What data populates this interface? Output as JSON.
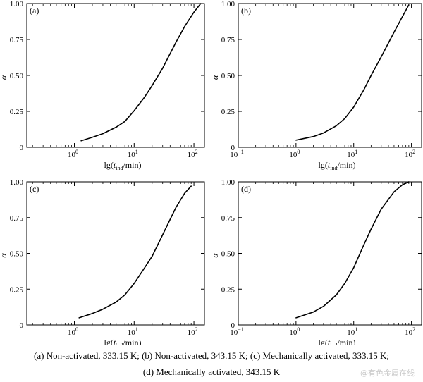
{
  "chart_data": [
    {
      "type": "line",
      "panel_label": "(a)",
      "xscale": "log",
      "xlim": [
        0.16,
        150
      ],
      "ylim": [
        0,
        1
      ],
      "xticks": [
        {
          "v": 1,
          "base": "10",
          "exp": "0"
        },
        {
          "v": 10,
          "base": "10",
          "exp": "1"
        },
        {
          "v": 100,
          "base": "10",
          "exp": "2"
        }
      ],
      "yticks": [
        {
          "v": 0,
          "label": "0"
        },
        {
          "v": 0.25,
          "label": "0.25"
        },
        {
          "v": 0.5,
          "label": "0.50"
        },
        {
          "v": 0.75,
          "label": "0.75"
        },
        {
          "v": 1,
          "label": "1.00"
        }
      ],
      "xlabel": {
        "pre": "lg(",
        "var": "t",
        "sub": "ind",
        "post": "/min)"
      },
      "ylabel": "α",
      "x": [
        1.3,
        2,
        3,
        5,
        7,
        10,
        15,
        20,
        30,
        50,
        70,
        100,
        130
      ],
      "y": [
        0.045,
        0.07,
        0.095,
        0.14,
        0.18,
        0.255,
        0.35,
        0.43,
        0.55,
        0.73,
        0.84,
        0.94,
        1.0
      ]
    },
    {
      "type": "line",
      "panel_label": "(b)",
      "xscale": "log",
      "xlim": [
        0.1,
        150
      ],
      "ylim": [
        0,
        1
      ],
      "xticks": [
        {
          "v": 0.1,
          "base": "10",
          "exp": "−1"
        },
        {
          "v": 1,
          "base": "10",
          "exp": "0"
        },
        {
          "v": 10,
          "base": "10",
          "exp": "1"
        },
        {
          "v": 100,
          "base": "10",
          "exp": "2"
        }
      ],
      "yticks": [
        {
          "v": 0,
          "label": "0"
        },
        {
          "v": 0.25,
          "label": "0.25"
        },
        {
          "v": 0.5,
          "label": "0.50"
        },
        {
          "v": 0.75,
          "label": "0.75"
        },
        {
          "v": 1,
          "label": "1.00"
        }
      ],
      "xlabel": {
        "pre": "lg(",
        "var": "t",
        "sub": "ind",
        "post": "/min)"
      },
      "ylabel": "α",
      "x": [
        1,
        2,
        3,
        5,
        7,
        10,
        15,
        20,
        30,
        50,
        70,
        90
      ],
      "y": [
        0.05,
        0.075,
        0.1,
        0.15,
        0.2,
        0.28,
        0.4,
        0.5,
        0.63,
        0.8,
        0.91,
        0.99
      ]
    },
    {
      "type": "line",
      "panel_label": "(c)",
      "xscale": "log",
      "xlim": [
        0.16,
        150
      ],
      "ylim": [
        0,
        1
      ],
      "xticks": [
        {
          "v": 1,
          "base": "10",
          "exp": "0"
        },
        {
          "v": 10,
          "base": "10",
          "exp": "1"
        },
        {
          "v": 100,
          "base": "10",
          "exp": "2"
        }
      ],
      "yticks": [
        {
          "v": 0,
          "label": "0"
        },
        {
          "v": 0.25,
          "label": "0.25"
        },
        {
          "v": 0.5,
          "label": "0.50"
        },
        {
          "v": 0.75,
          "label": "0.75"
        },
        {
          "v": 1,
          "label": "1.00"
        }
      ],
      "xlabel": {
        "pre": "lg(",
        "var": "t",
        "sub": "ind",
        "post": "/min)"
      },
      "ylabel": "α",
      "x": [
        1.2,
        2,
        3,
        5,
        7,
        10,
        15,
        20,
        30,
        50,
        70,
        90
      ],
      "y": [
        0.05,
        0.08,
        0.11,
        0.16,
        0.21,
        0.29,
        0.4,
        0.48,
        0.63,
        0.82,
        0.92,
        0.97
      ]
    },
    {
      "type": "line",
      "panel_label": "(d)",
      "xscale": "log",
      "xlim": [
        0.1,
        150
      ],
      "ylim": [
        0,
        1
      ],
      "xticks": [
        {
          "v": 0.1,
          "base": "10",
          "exp": "−1"
        },
        {
          "v": 1,
          "base": "10",
          "exp": "0"
        },
        {
          "v": 10,
          "base": "10",
          "exp": "1"
        },
        {
          "v": 100,
          "base": "10",
          "exp": "2"
        }
      ],
      "yticks": [
        {
          "v": 0,
          "label": "0"
        },
        {
          "v": 0.25,
          "label": "0.25"
        },
        {
          "v": 0.5,
          "label": "0.50"
        },
        {
          "v": 0.75,
          "label": "0.75"
        },
        {
          "v": 1,
          "label": "1.00"
        }
      ],
      "xlabel": {
        "pre": "lg(",
        "var": "t",
        "sub": "ind",
        "post": "/min)"
      },
      "ylabel": "α",
      "x": [
        1,
        2,
        3,
        5,
        7,
        10,
        15,
        20,
        30,
        50,
        70,
        90
      ],
      "y": [
        0.05,
        0.09,
        0.13,
        0.21,
        0.29,
        0.4,
        0.56,
        0.67,
        0.81,
        0.93,
        0.98,
        1.0
      ]
    }
  ],
  "caption": {
    "line1": "(a)  Non-activated,  333.15  K;  (b)  Non-activated,  343.15  K;  (c)  Mechanically  activated,  333.15  K;",
    "line2": "(d) Mechanically activated, 343.15 K"
  },
  "watermark": "@有色金属在线"
}
